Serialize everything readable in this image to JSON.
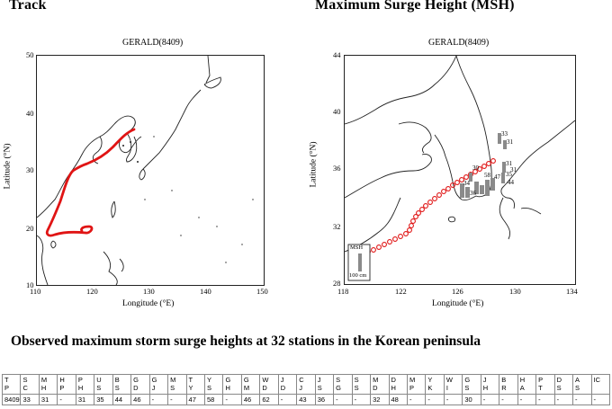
{
  "headings": {
    "left": "Track",
    "right": "Maximum Surge Height (MSH)"
  },
  "track_panel": {
    "title": "GERALD(8409)",
    "xlabel": "Longitude (°E)",
    "ylabel": "Latitude (°N)",
    "xticks": [
      "110",
      "120",
      "130",
      "140",
      "150"
    ],
    "yticks": [
      "50",
      "40",
      "30",
      "20",
      "10"
    ]
  },
  "msh_panel": {
    "title": "GERALD(8409)",
    "xlabel": "Longitude (°E)",
    "ylabel": "Latitude (°N)",
    "xticks": [
      "118",
      "122",
      "126",
      "130",
      "134"
    ],
    "yticks": [
      "44",
      "40",
      "36",
      "32",
      "28"
    ],
    "legend_top": "MSH",
    "legend_bottom": "100 cm",
    "bar_labels": [
      "33",
      "31",
      "31",
      "35",
      "30",
      "58",
      "47",
      "44",
      "34",
      "36",
      "31"
    ]
  },
  "caption": "Observed maximum storm surge heights at 32 stations in the Korean peninsula",
  "table": {
    "header": [
      [
        "T",
        "P"
      ],
      [
        "S",
        "C"
      ],
      [
        "M",
        "H"
      ],
      [
        "H",
        "P"
      ],
      [
        "P",
        "H"
      ],
      [
        "U",
        "S"
      ],
      [
        "B",
        "S"
      ],
      [
        "G",
        "D"
      ],
      [
        "G",
        "J"
      ],
      [
        "M",
        "S"
      ],
      [
        "T",
        "Y"
      ],
      [
        "Y",
        "S"
      ],
      [
        "G",
        "H"
      ],
      [
        "G",
        "M"
      ],
      [
        "W",
        "D"
      ],
      [
        "J",
        "D"
      ],
      [
        "C",
        "J"
      ],
      [
        "J",
        "S"
      ],
      [
        "S",
        "G"
      ],
      [
        "S",
        "S"
      ],
      [
        "M",
        "D"
      ],
      [
        "D",
        "H"
      ],
      [
        "M",
        "P"
      ],
      [
        "Y",
        "K"
      ],
      [
        "W",
        "I"
      ],
      [
        "G",
        "S"
      ],
      [
        "J",
        "H"
      ],
      [
        "B",
        "R"
      ],
      [
        "H",
        "A"
      ],
      [
        "P",
        "T"
      ],
      [
        "D",
        "S"
      ],
      [
        "A",
        "S"
      ],
      [
        "IC",
        ""
      ]
    ],
    "values": [
      "8409",
      "33",
      "31",
      "-",
      "31",
      "35",
      "44",
      "46",
      "-",
      "-",
      "47",
      "58",
      "-",
      "46",
      "62",
      "-",
      "43",
      "36",
      "-",
      "-",
      "32",
      "48",
      "-",
      "-",
      "-",
      "30",
      "-",
      "-",
      "-",
      "-",
      "-",
      "-",
      "-"
    ]
  }
}
